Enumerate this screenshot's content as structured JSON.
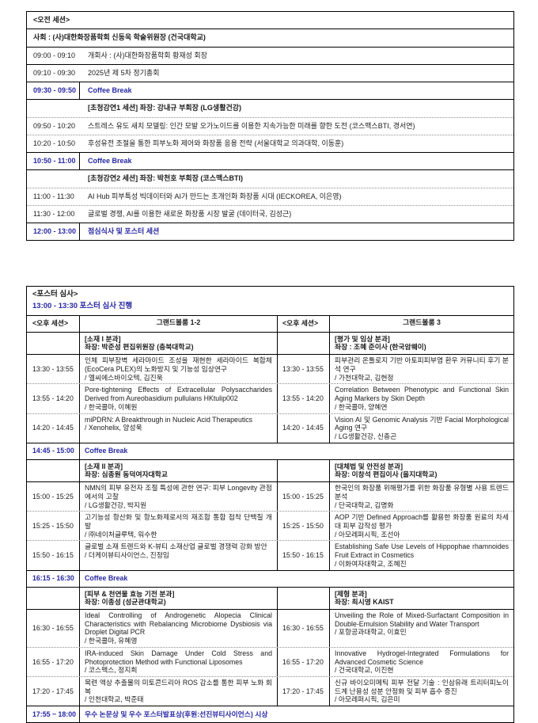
{
  "colors": {
    "accent_blue": "#2727a3",
    "border_black": "#000000"
  },
  "morning": {
    "title": "<오전 세션>",
    "host": "사회 : (사)대한화장품학회 신동욱 학술위원장 (건국대학교)",
    "rows": [
      {
        "time": "09:00 - 09:10",
        "text": "개회사 : (사)대한화장품학회 황재성 회장"
      },
      {
        "time": "09:10 - 09:30",
        "text": "2025년 제 5차 정기총회"
      },
      {
        "time": "09:30 - 09:50",
        "text": "Coffee Break"
      },
      {
        "time": "",
        "text": "[초청강연1 세션] 좌장:  강내규 부회장 (LG생활건강)"
      },
      {
        "time": "09:50 - 10:20",
        "text": "스트레스 유도 새치 모델링: 인간 모발 오가노이드를 이용한 지속가능한 미래를 향한 도전 (코스맥스BTI, 경서연)"
      },
      {
        "time": "10:20 - 10:50",
        "text": "후성유전 조절을 통한 피부노화 제어와 화장품 응용 전략 (서울대학교 의과대학, 이동훈)"
      },
      {
        "time": "10:50 - 11:00",
        "text": "Coffee Break"
      },
      {
        "time": "",
        "text": "[초청강연2 세션] 좌장: 박천호 부회장 (코스맥스BTI)"
      },
      {
        "time": "11:00 - 11:30",
        "text": "AI Hub 피부특성 빅데이터와 AI가 만드는 초개인화 화장품 시대 (IECKOREA, 이은영)"
      },
      {
        "time": "11:30 - 12:00",
        "text": "글로벌 경쟁, AI를 이용한 새로운 화장품 시장 발굴 (데이터국, 김성근)"
      },
      {
        "time": "12:00 - 13:00",
        "text": "점심식사 및 포스터 세션"
      }
    ]
  },
  "poster": {
    "title": "<포스터 심사>",
    "subtitle": "13:00 - 13:30 포스터 심사 진행"
  },
  "afternoon": {
    "header": {
      "left_label": "<오후 세션>",
      "left_room": "그랜드볼룸 1-2",
      "right_label": "<오후 세션>",
      "right_room": "그랜드볼룸 3"
    },
    "sections": [
      {
        "left": {
          "title": "[소재 I 분과]",
          "chair": "좌장: 박준성 편집위원장 (충북대학교)"
        },
        "right": {
          "title": "[평가 및 임상 분과]",
          "chair": "좌장 : 조혜 준이사 (한국암웨이)"
        },
        "rows": [
          {
            "time": "13:30 - 13:55",
            "left_title": "인체 피부장벽 세라마이드 조성을 재현한 세라마이드 복합체 (EcoCera PLEX)의 노화방지 및 기능성 임상연구",
            "left_author": "/ 엘씨에스바이오텍, 김진욱",
            "right_title": "피부관리 온톨로지 기반 아토피피부염 환우 커뮤니티 후기 분석 연구",
            "right_author": "/ 가천대학교, 김현정"
          },
          {
            "time": "13:55 - 14:20",
            "left_title": "Pore-tightening Effects of Extracellular Polysaccharides Derived from Aureobasidium pullulans HKtulip002",
            "left_author": "/ 한국콜마, 이혜원",
            "right_title": "Correlation Between Phenotypic and Functional Skin Aging Markers by Skin Depth",
            "right_author": "/ 한국콜마, 양혜연"
          },
          {
            "time": "14:20 - 14:45",
            "left_title": "miPDRN: A Breakthrough in Nucleic Acid Therapeutics",
            "left_author": "/ Xenohelix, 양성욱",
            "right_title": "Vision AI 및 Genomic Analysis 기반 Facial Morphological Aging 연구",
            "right_author": "/ LG생활건강, 신충곤"
          }
        ]
      },
      {
        "left": {
          "title": "[소재 II 분과]",
          "chair": "좌장: 심종원 동덕여자대학교"
        },
        "right": {
          "title": "[대체법 및 안전성 분과]",
          "chair": "좌장: 이창석 편집이사 (을지대학교)"
        },
        "rows": [
          {
            "time": "15:00 - 15:25",
            "left_title": "NMN의 피부 유전자 조절 특성에 관한 연구: 피부 Longevity 관점에서의 고찰",
            "left_author": "/ LG생활건강, 박지원",
            "right_title": "한국인의 화장품 위해평가를 위한 화장품 유형별 사용 트렌드 분석",
            "right_author": "/ 단국대학교, 김명화"
          },
          {
            "time": "15:25 - 15:50",
            "left_title": "고기능성 항산화 및 항노화제로서의 재조합 통합 접착 단백질 개발",
            "left_author": "/ ㈜네이처글루텍, 워수한",
            "right_title": "AOP 기반 Defined Approach를 활용한 화장품 원료의 차세대 피부 감작성 평가",
            "right_author": "/ 아모레퍼시픽, 조선아"
          },
          {
            "time": "15:50 - 16:15",
            "left_title": "글로벌 소재 트렌드와 K-뷰티 소재산업 글로벌 경쟁력 강화 방안",
            "left_author": "/ 더케이뷰티사이언스, 진정임",
            "right_title": "Establishing Safe Use Levels of Hippophae rhamnoides Fruit Extract in Cosmetics",
            "right_author": "/ 이화여자대학교, 조혜진"
          }
        ]
      },
      {
        "left": {
          "title": "[피부 & 천연물 효능 기전 분과]",
          "chair": "좌장: 이종성 (성균관대학교)"
        },
        "right": {
          "title": "[제형 분과]",
          "chair": "좌장: 최시영 KAIST"
        },
        "rows": [
          {
            "time": "16:30 - 16:55",
            "left_title": "Ideal Controlling of Androgenetic Alopecia Clinical Characteristics with Rebalancing Microbiome Dysbiosis via Droplet Digital PCR",
            "left_author": "/ 한국콜마, 유혜영",
            "right_title": "Unveiling the Role of Mixed-Surfactant Composition in Double-Emulsion Stability and Water Transport",
            "right_author": "/ 포항공과대학교, 이효민"
          },
          {
            "time": "16:55 - 17:20",
            "left_title": "IRA-induced Skin Damage Under Cold Stress and Photoprotection Method with Functional Liposomes",
            "left_author": "/ 코스맥스, 정지희",
            "right_title": "Innovative Hydrogel-Integrated Formulations for Advanced Cosmetic Science",
            "right_author": "/ 건국대학교, 이진현"
          },
          {
            "time": "17:20 - 17:45",
            "left_title": "목련 액상 추출물의 미토콘드리아 ROS 감소를 통한 피부 노화 회복",
            "left_author": "/ 인천대학교, 박준태",
            "right_title": "신규 바이오미메틱 피부 전달 기술 : 인삼유래 트리터피노이드계 난용성 성분 안정화 및 피부 흡수 증진",
            "right_author": "/ 아모레퍼시픽, 김은미"
          }
        ]
      }
    ],
    "breaks": [
      {
        "time": "14:45 - 15:00",
        "text": "Coffee Break"
      },
      {
        "time": "16:15 - 16:30",
        "text": "Coffee Break"
      }
    ],
    "award": {
      "time": "17:55 ~ 18:00",
      "text": "우수 논문상 및 우수 포스터발표상(후원:선진뷰티사이언스) 시상"
    }
  }
}
